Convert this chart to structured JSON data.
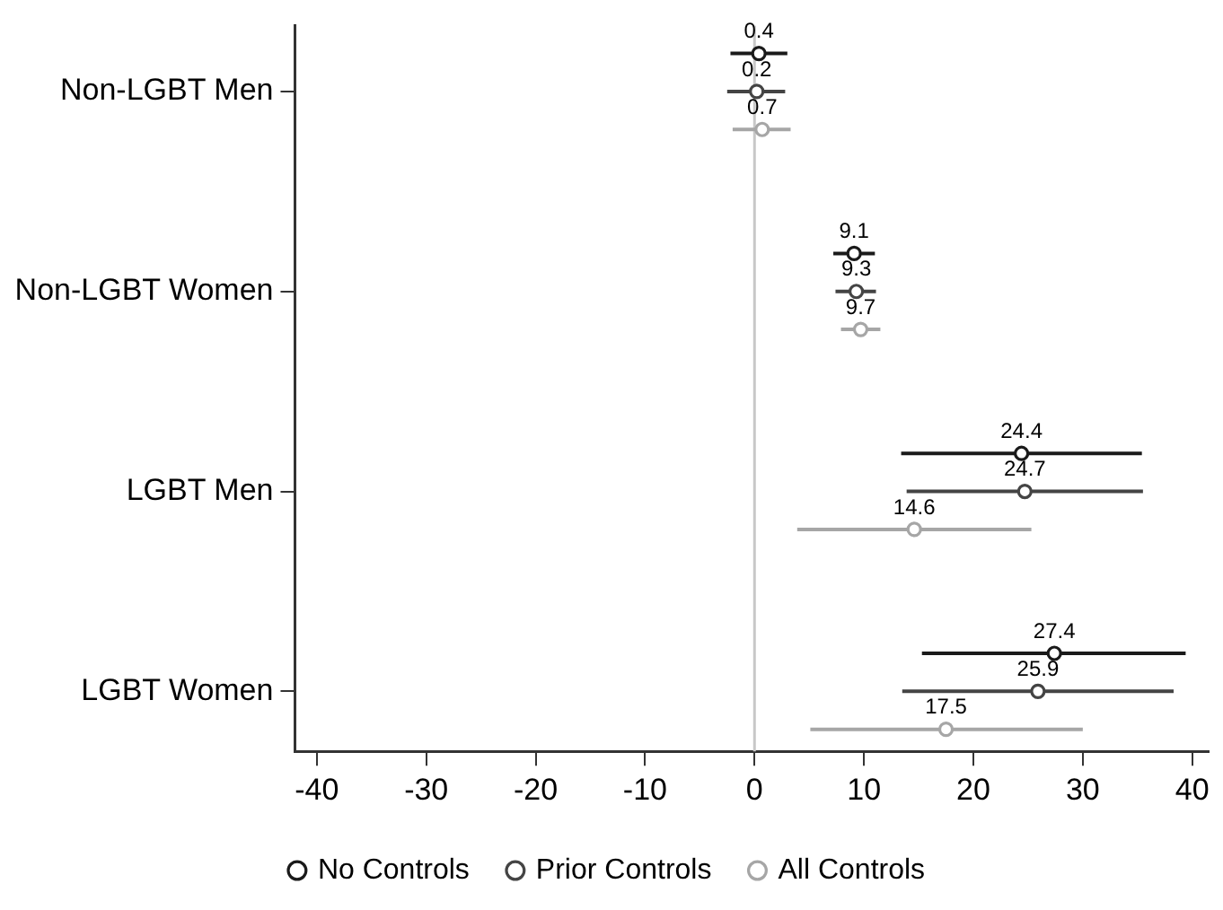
{
  "chart_data": {
    "type": "scatter",
    "orientation": "horizontal",
    "categories": [
      "Non-LGBT Men",
      "Non-LGBT Women",
      "LGBT Men",
      "LGBT Women"
    ],
    "series": [
      {
        "name": "No Controls",
        "color": "#1a1a1a",
        "values": [
          0.4,
          9.1,
          24.4,
          27.4
        ],
        "errors": [
          [
            -2.2,
            3.0
          ],
          [
            7.2,
            11.0
          ],
          [
            13.4,
            35.4
          ],
          [
            15.3,
            39.4
          ]
        ]
      },
      {
        "name": "Prior Controls",
        "color": "#444444",
        "values": [
          0.2,
          9.3,
          24.7,
          25.9
        ],
        "errors": [
          [
            -2.5,
            2.8
          ],
          [
            7.4,
            11.1
          ],
          [
            13.9,
            35.5
          ],
          [
            13.5,
            38.3
          ]
        ]
      },
      {
        "name": "All Controls",
        "color": "#a6a6a6",
        "values": [
          0.7,
          9.7,
          14.6,
          17.5
        ],
        "errors": [
          [
            -2.0,
            3.3
          ],
          [
            7.9,
            11.5
          ],
          [
            3.9,
            25.3
          ],
          [
            5.1,
            30.0
          ]
        ]
      }
    ],
    "xlim": [
      -42,
      41.5
    ],
    "xticks": [
      -40,
      -30,
      -20,
      -10,
      0,
      10,
      20,
      30,
      40
    ],
    "ref_lines": [
      {
        "axis": "x",
        "value": 0,
        "color": "#c8c8c8"
      }
    ],
    "data_labels": true,
    "grid": false,
    "legend": "bottom",
    "marker": "circle"
  }
}
